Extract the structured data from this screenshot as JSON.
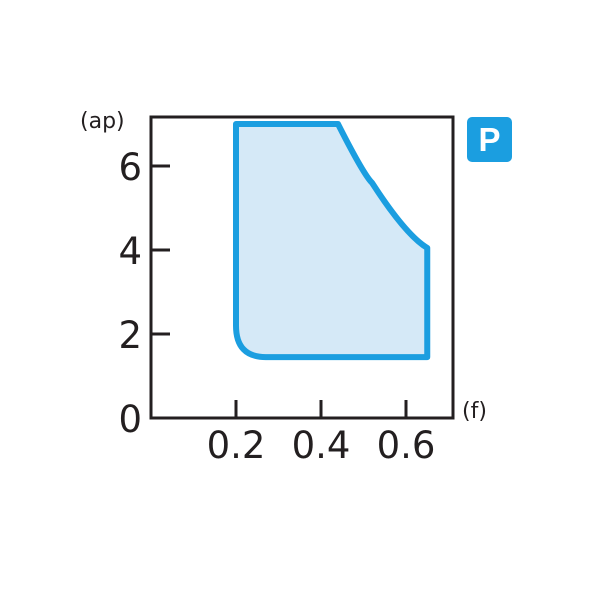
{
  "chart_data": {
    "type": "area",
    "xlabel": "(f)",
    "ylabel": "(ap)",
    "xlim": [
      0,
      0.71
    ],
    "ylim": [
      0,
      7.2
    ],
    "x_ticks": [
      "0.2",
      "0.4",
      "0.6"
    ],
    "x_tick_values": [
      0.2,
      0.4,
      0.6
    ],
    "y_ticks": [
      "0",
      "2",
      "4",
      "6"
    ],
    "y_tick_values": [
      0,
      2,
      4,
      6
    ],
    "grid": false,
    "badge": "P",
    "region": {
      "outline": [
        [
          0.2,
          7.0
        ],
        [
          0.44,
          7.0
        ],
        [
          0.52,
          5.6
        ],
        [
          0.6,
          4.5
        ],
        [
          0.65,
          4.05
        ],
        [
          0.65,
          1.45
        ],
        [
          0.27,
          1.45
        ],
        [
          0.2,
          2.2
        ]
      ],
      "stroke_color": "#1b9ee0",
      "fill_color": "#d5e9f7"
    },
    "badge_color": "#1b9ee0"
  }
}
